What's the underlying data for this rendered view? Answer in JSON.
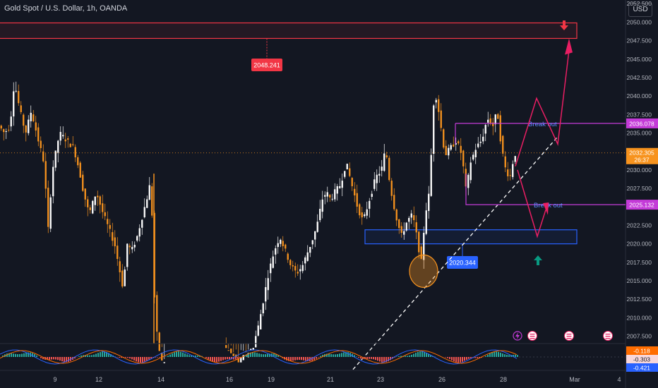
{
  "header": {
    "title": "Gold Spot / U.S. Dollar, 1h, OANDA",
    "currency_button": "USD"
  },
  "colors": {
    "background": "#131722",
    "candle_up": "#ffffff",
    "candle_down": "#f7931e",
    "resistance_zone": "#f23645",
    "support_zone": "#2962ff",
    "breakout_line": "#c43bd8",
    "projection_path": "#e91e63",
    "trendline": "#ffffff",
    "current_price_tag": "#f7931e",
    "macd_line": "#2962ff",
    "signal_line": "#ff6d00",
    "hist_positive": "#26a69a",
    "hist_negative": "#ef5350"
  },
  "chart_data": {
    "type": "candlestick",
    "symbol": "Gold Spot / U.S. Dollar",
    "timeframe": "1h",
    "exchange": "OANDA",
    "x_tick_labels": [
      "9",
      "12",
      "14",
      "16",
      "19",
      "21",
      "23",
      "26",
      "28",
      "Mar",
      "4"
    ],
    "y_tick_labels": [
      "2052.500",
      "2050.000",
      "2047.500",
      "2045.000",
      "2042.500",
      "2040.000",
      "2037.500",
      "2035.000",
      "2032.500",
      "2030.000",
      "2027.500",
      "2025.000",
      "2022.500",
      "2020.000",
      "2017.500",
      "2015.000",
      "2012.500",
      "2010.000",
      "2007.500"
    ],
    "ylim": [
      2006.5,
      2053.0
    ],
    "current_price": {
      "value": "2032.305",
      "countdown": "26:37"
    },
    "price_labels": [
      {
        "text": "2036.078",
        "color": "#c43bd8"
      },
      {
        "text": "2025.132",
        "color": "#c43bd8"
      }
    ],
    "zones": [
      {
        "label": "2048.241",
        "from": 2047.8,
        "to": 2049.9,
        "color": "#f23645"
      },
      {
        "label": "2020.344",
        "from": 2020.0,
        "to": 2021.9,
        "color": "#2962ff"
      }
    ],
    "annotations": [
      {
        "text": "Break out",
        "level": 2036.078
      },
      {
        "text": "Break out",
        "level": 2025.132
      }
    ],
    "price_path": [
      [
        0,
        2036
      ],
      [
        8,
        2035
      ],
      [
        16,
        2036
      ],
      [
        22,
        2042
      ],
      [
        30,
        2038
      ],
      [
        38,
        2035
      ],
      [
        46,
        2038
      ],
      [
        56,
        2034
      ],
      [
        64,
        2031
      ],
      [
        70,
        2022
      ],
      [
        76,
        2030
      ],
      [
        86,
        2035
      ],
      [
        96,
        2034
      ],
      [
        106,
        2033
      ],
      [
        114,
        2030
      ],
      [
        120,
        2027
      ],
      [
        128,
        2024
      ],
      [
        138,
        2027
      ],
      [
        148,
        2024
      ],
      [
        156,
        2022
      ],
      [
        164,
        2020
      ],
      [
        170,
        2017
      ],
      [
        176,
        2014
      ],
      [
        182,
        2020
      ],
      [
        188,
        2019
      ],
      [
        196,
        2021
      ],
      [
        204,
        2024
      ],
      [
        212,
        2027
      ],
      [
        216,
        2029
      ],
      [
        218,
        2019
      ],
      [
        222,
        2009
      ],
      [
        230,
        2004
      ],
      [
        320,
        2006
      ],
      [
        340,
        2004
      ],
      [
        360,
        2006
      ],
      [
        368,
        2009
      ],
      [
        376,
        2013
      ],
      [
        382,
        2016
      ],
      [
        390,
        2019
      ],
      [
        398,
        2021
      ],
      [
        406,
        2019
      ],
      [
        414,
        2017
      ],
      [
        422,
        2016
      ],
      [
        430,
        2017
      ],
      [
        438,
        2019
      ],
      [
        446,
        2021
      ],
      [
        452,
        2023
      ],
      [
        458,
        2026
      ],
      [
        464,
        2027
      ],
      [
        470,
        2026
      ],
      [
        476,
        2027
      ],
      [
        484,
        2028
      ],
      [
        492,
        2031
      ],
      [
        500,
        2028
      ],
      [
        508,
        2025
      ],
      [
        516,
        2023
      ],
      [
        522,
        2025
      ],
      [
        528,
        2027
      ],
      [
        534,
        2029
      ],
      [
        542,
        2030
      ],
      [
        548,
        2033
      ],
      [
        554,
        2028
      ],
      [
        562,
        2024
      ],
      [
        570,
        2021
      ],
      [
        578,
        2023
      ],
      [
        586,
        2024
      ],
      [
        594,
        2020
      ],
      [
        598,
        2017
      ],
      [
        604,
        2024
      ],
      [
        610,
        2027
      ],
      [
        616,
        2039
      ],
      [
        620,
        2040
      ],
      [
        626,
        2036
      ],
      [
        632,
        2032
      ],
      [
        640,
        2033
      ],
      [
        648,
        2034
      ],
      [
        656,
        2032
      ],
      [
        662,
        2027
      ],
      [
        668,
        2031
      ],
      [
        676,
        2033
      ],
      [
        684,
        2034
      ],
      [
        692,
        2037
      ],
      [
        700,
        2036
      ],
      [
        706,
        2038
      ],
      [
        712,
        2033
      ],
      [
        718,
        2030
      ],
      [
        724,
        2029
      ],
      [
        728,
        2031
      ],
      [
        734,
        2033
      ]
    ],
    "projection": [
      [
        735,
        2030
      ],
      [
        760,
        2039.5
      ],
      [
        805,
        2047.8
      ],
      [
        735,
        2030
      ],
      [
        762,
        2021
      ],
      [
        780,
        2025
      ]
    ],
    "trendline": {
      "from": [
        500,
        2003
      ],
      "to": [
        790,
        2034.5
      ]
    },
    "macd": {
      "labels": [
        "-0.118",
        "-0.303",
        "-0.421"
      ]
    }
  }
}
